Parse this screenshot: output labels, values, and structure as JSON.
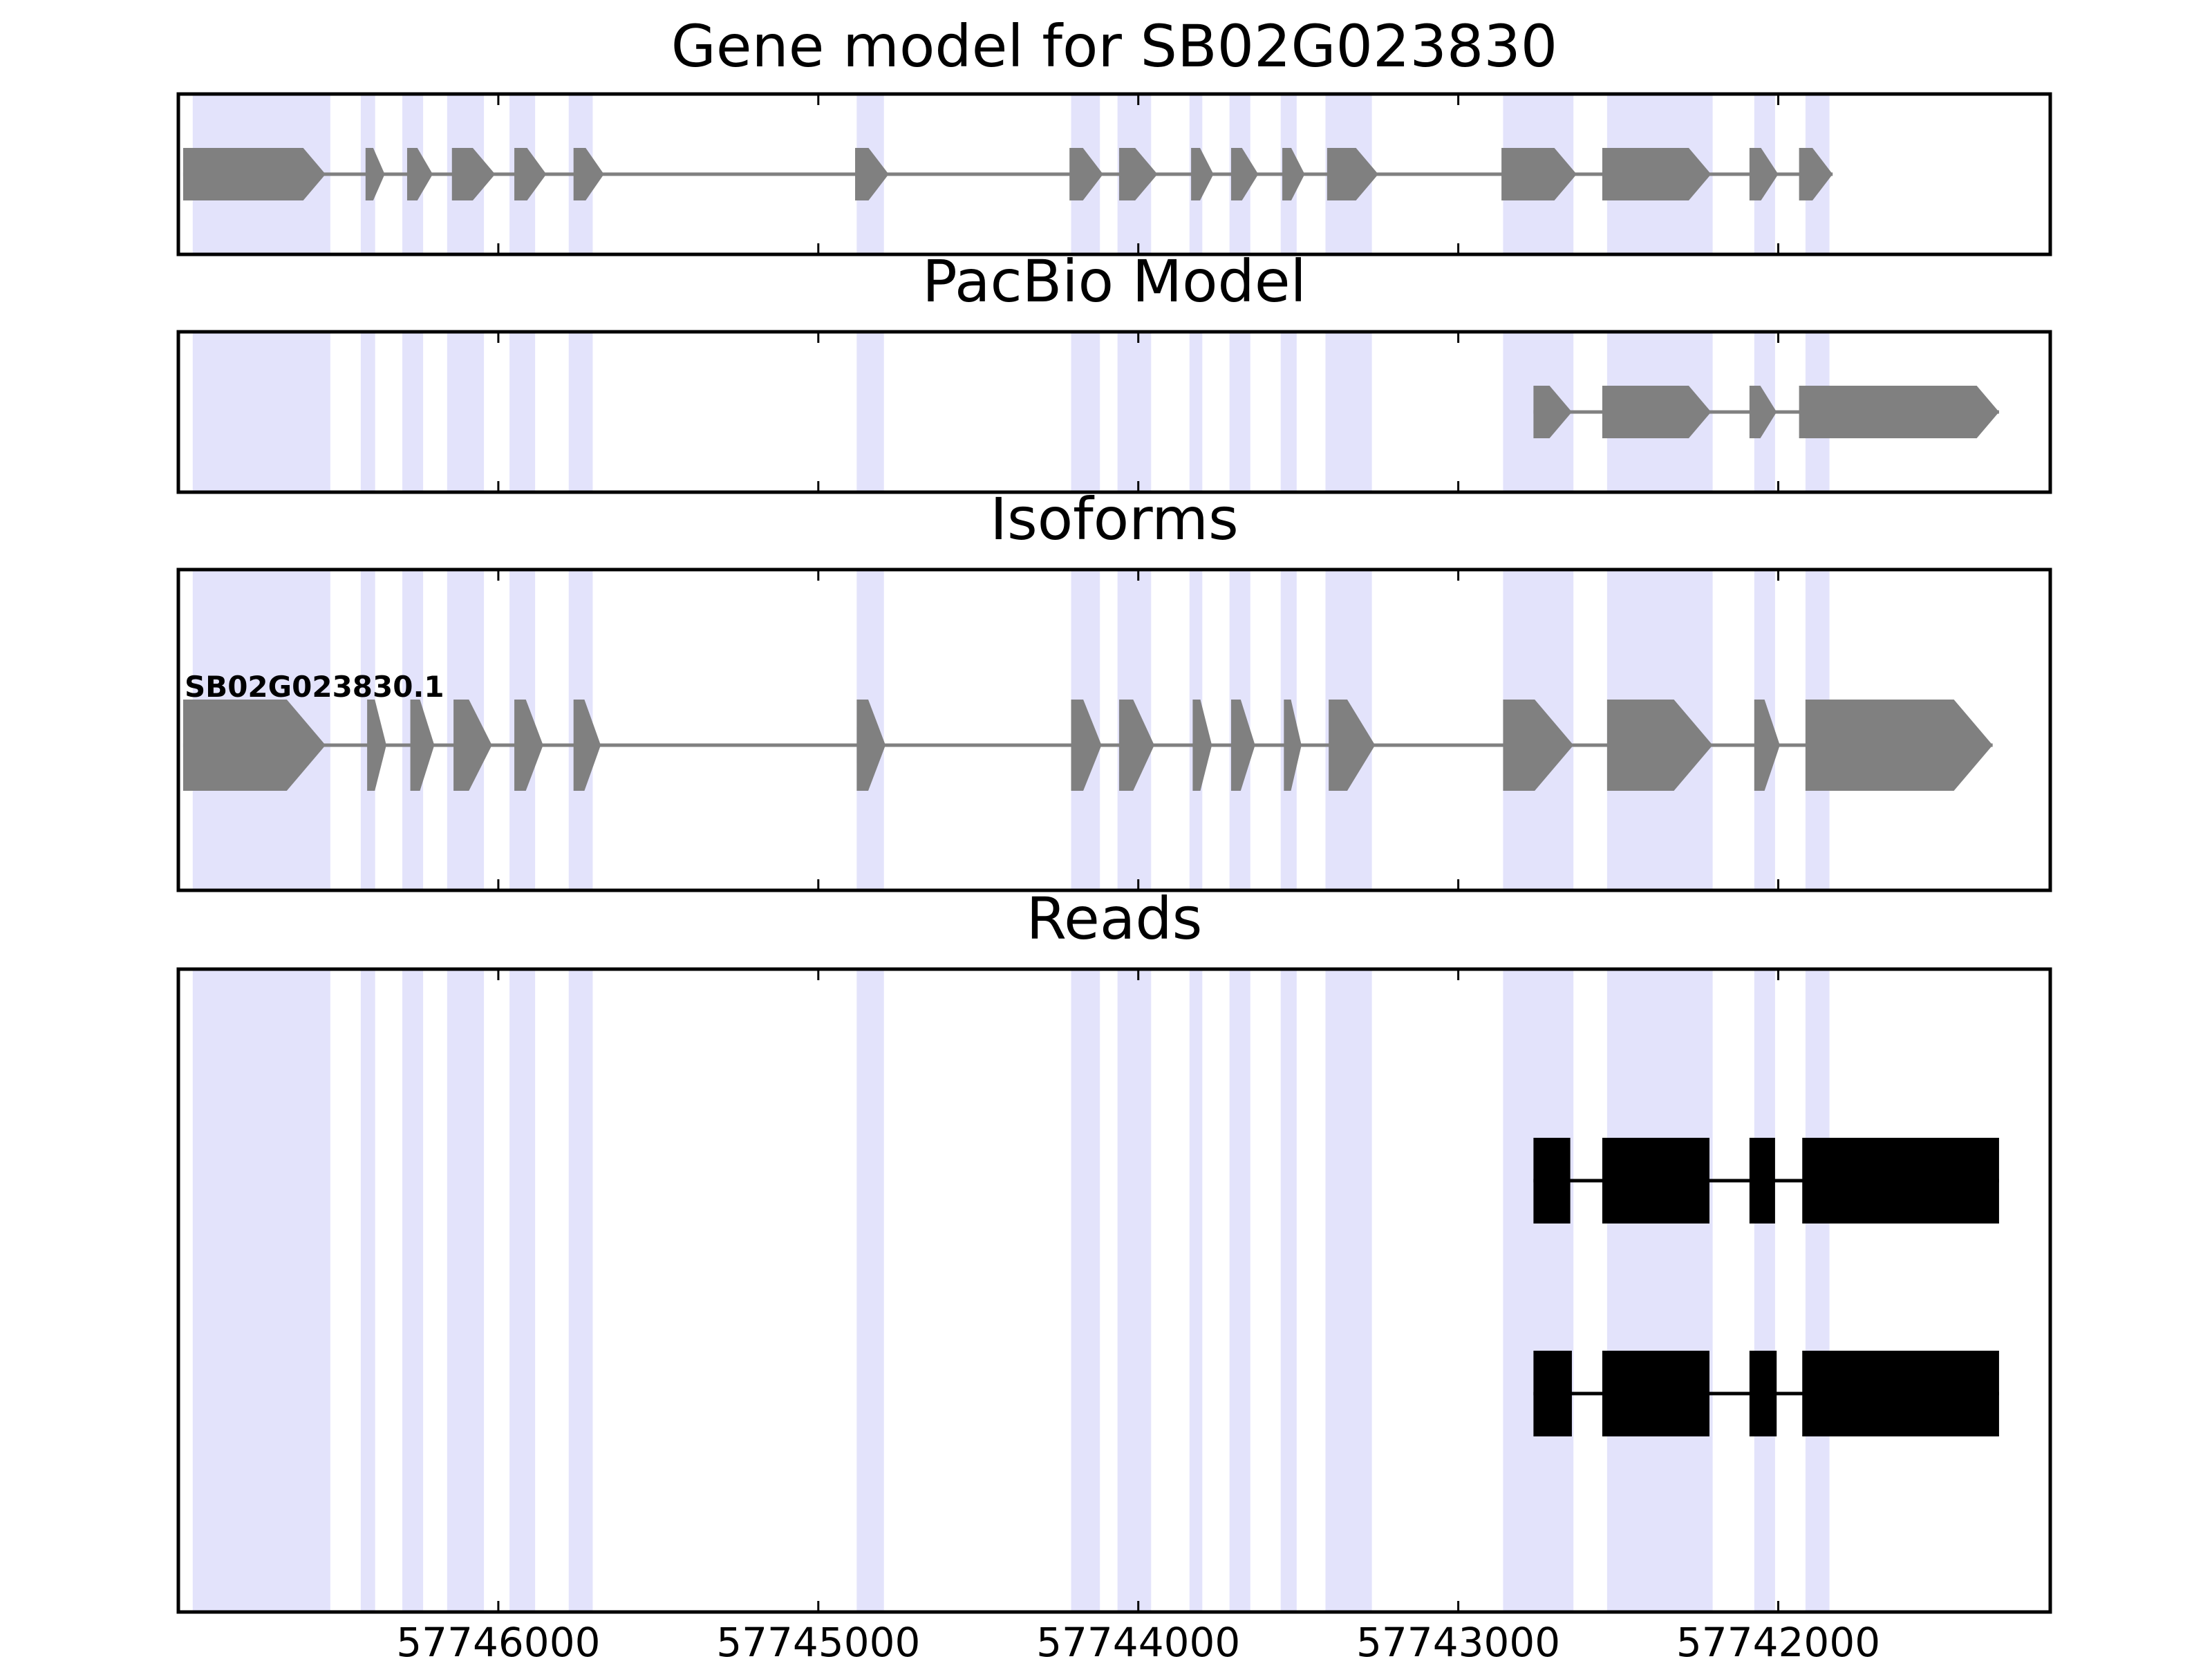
{
  "chart_data": {
    "type": "gene-track",
    "x_axis": {
      "reversed": true,
      "xlim": [
        57747000,
        57741150
      ],
      "ticks": [
        57746000,
        57745000,
        57744000,
        57743000,
        57742000
      ],
      "tick_labels": [
        "57746000",
        "57745000",
        "57744000",
        "57743000",
        "57742000"
      ]
    },
    "highlight_color": "#e3e3fb",
    "feature_color": "#808080",
    "read_color": "#000000",
    "highlight_regions": [
      [
        57746955,
        57746525
      ],
      [
        57746430,
        57746385
      ],
      [
        57746300,
        57746235
      ],
      [
        57746160,
        57746045
      ],
      [
        57745965,
        57745885
      ],
      [
        57745780,
        57745705
      ],
      [
        57744880,
        57744795
      ],
      [
        57744210,
        57744120
      ],
      [
        57744065,
        57743960
      ],
      [
        57743840,
        57743800
      ],
      [
        57743715,
        57743650
      ],
      [
        57743555,
        57743505
      ],
      [
        57743415,
        57743270
      ],
      [
        57742860,
        57742640
      ],
      [
        57742535,
        57742205
      ],
      [
        57742075,
        57742010
      ],
      [
        57741915,
        57741840
      ]
    ],
    "panels": [
      {
        "title": "Gene model for SB02G023830",
        "kind": "gene",
        "exons": [
          [
            57746985,
            57746540
          ],
          [
            57746415,
            57746355
          ],
          [
            57746285,
            57746205
          ],
          [
            57746145,
            57746010
          ],
          [
            57745950,
            57745850
          ],
          [
            57745765,
            57745670
          ],
          [
            57744885,
            57744780
          ],
          [
            57744215,
            57744110
          ],
          [
            57744060,
            57743940
          ],
          [
            57743835,
            57743765
          ],
          [
            57743710,
            57743625
          ],
          [
            57743550,
            57743480
          ],
          [
            57743410,
            57743250
          ],
          [
            57742865,
            57742630
          ],
          [
            57742550,
            57742210
          ],
          [
            57742090,
            57742000
          ],
          [
            57741935,
            57741830
          ]
        ]
      },
      {
        "title": "PacBio Model",
        "kind": "gene",
        "exons": [
          [
            57742765,
            57742645
          ],
          [
            57742550,
            57742210
          ],
          [
            57742090,
            57742005
          ],
          [
            57741935,
            57741310
          ]
        ]
      },
      {
        "title": "Isoforms",
        "kind": "gene",
        "isoform_label": "SB02G023830.1",
        "exons": [
          [
            57746985,
            57746540
          ],
          [
            57746410,
            57746350
          ],
          [
            57746275,
            57746200
          ],
          [
            57746140,
            57746020
          ],
          [
            57745950,
            57745860
          ],
          [
            57745765,
            57745680
          ],
          [
            57744880,
            57744790
          ],
          [
            57744210,
            57744115
          ],
          [
            57744060,
            57743950
          ],
          [
            57743830,
            57743770
          ],
          [
            57743710,
            57743635
          ],
          [
            57743545,
            57743490
          ],
          [
            57743405,
            57743260
          ],
          [
            57742860,
            57742640
          ],
          [
            57742535,
            57742205
          ],
          [
            57742075,
            57741995
          ],
          [
            57741915,
            57741330
          ]
        ]
      },
      {
        "title": "Reads",
        "kind": "reads",
        "reads": [
          [
            [
              57742765,
              57742650
            ],
            [
              57742550,
              57742215
            ],
            [
              57742090,
              57742010
            ],
            [
              57741925,
              57741310
            ]
          ],
          [
            [
              57742765,
              57742645
            ],
            [
              57742550,
              57742215
            ],
            [
              57742090,
              57742005
            ],
            [
              57741925,
              57741310
            ]
          ]
        ]
      }
    ]
  }
}
